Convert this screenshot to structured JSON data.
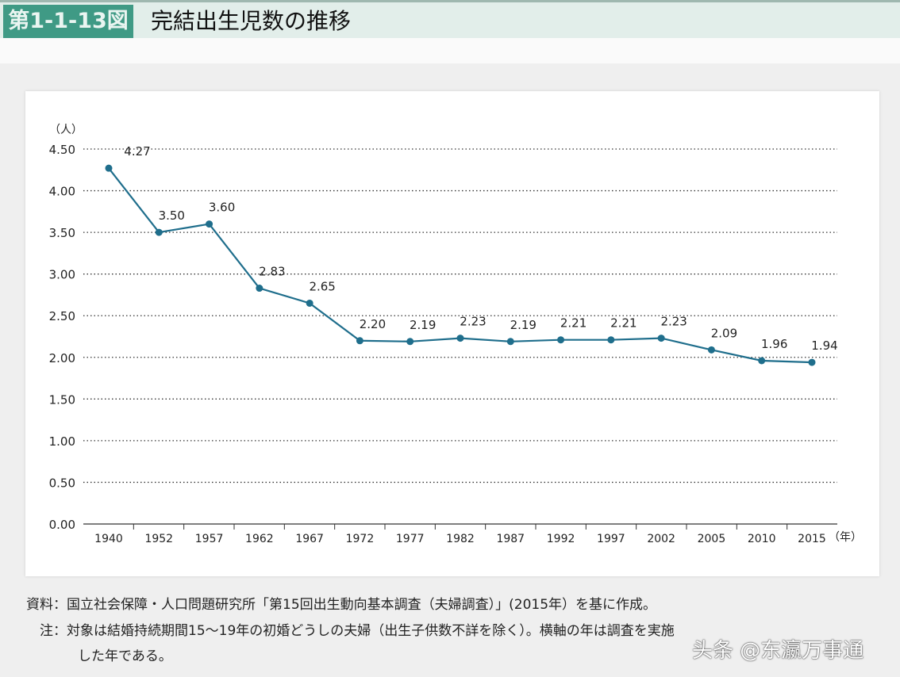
{
  "header": {
    "figure_no": "第1-1-13図",
    "title": "完結出生児数の推移"
  },
  "chart_data": {
    "type": "line",
    "title": "完結出生児数の推移",
    "ylabel": "（人）",
    "xlabel": "（年）",
    "ylim": [
      0,
      4.5
    ],
    "yticks": [
      "0.00",
      "0.50",
      "1.00",
      "1.50",
      "2.00",
      "2.50",
      "3.00",
      "3.50",
      "4.00",
      "4.50"
    ],
    "categories": [
      "1940",
      "1952",
      "1957",
      "1962",
      "1967",
      "1972",
      "1977",
      "1982",
      "1987",
      "1992",
      "1997",
      "2002",
      "2005",
      "2010",
      "2015"
    ],
    "values": [
      4.27,
      3.5,
      3.6,
      2.83,
      2.65,
      2.2,
      2.19,
      2.23,
      2.19,
      2.21,
      2.21,
      2.23,
      2.09,
      1.96,
      1.94
    ],
    "labels": [
      "4.27",
      "3.50",
      "3.60",
      "2.83",
      "2.65",
      "2.20",
      "2.19",
      "2.23",
      "2.19",
      "2.21",
      "2.21",
      "2.23",
      "2.09",
      "1.96",
      "1.94"
    ],
    "grid": "horizontal dotted",
    "line_color": "#1f6e8c"
  },
  "notes": {
    "source": "資料：国立社会保障・人口問題研究所「第15回出生動向基本調査（夫婦調査）」(2015年）を基に作成。",
    "note1": "注：対象は結婚持続期間15～19年の初婚どうしの夫婦（出生子供数不詳を除く）。横軸の年は調査を実施",
    "note2": "した年である。"
  },
  "watermark": "头条 @东瀛万事通"
}
